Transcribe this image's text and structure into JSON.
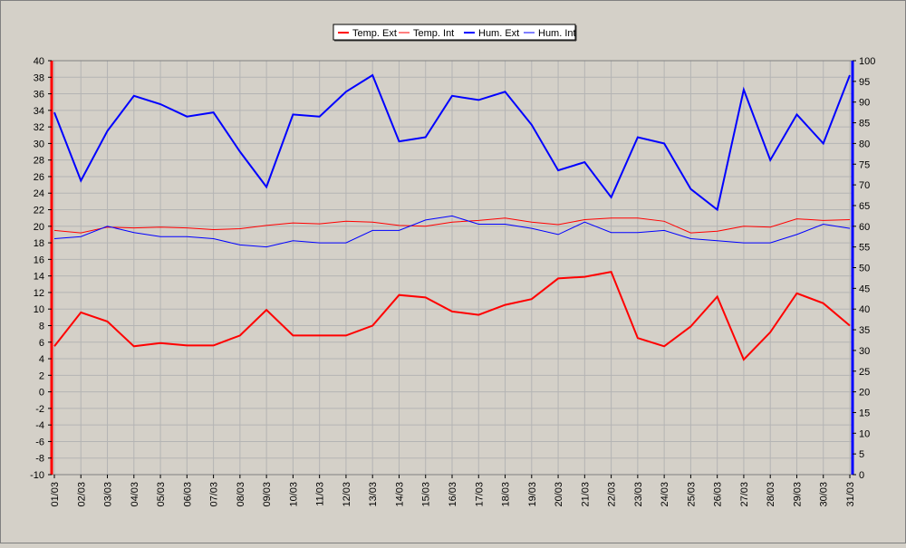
{
  "chart_data": {
    "type": "line",
    "title": "",
    "x": [
      "01/03",
      "02/03",
      "03/03",
      "04/03",
      "05/03",
      "06/03",
      "07/03",
      "08/03",
      "09/03",
      "10/03",
      "11/03",
      "12/03",
      "13/03",
      "14/03",
      "15/03",
      "16/03",
      "17/03",
      "18/03",
      "19/03",
      "20/03",
      "21/03",
      "22/03",
      "23/03",
      "24/03",
      "25/03",
      "26/03",
      "27/03",
      "28/03",
      "29/03",
      "30/03",
      "31/03"
    ],
    "left_axis": {
      "min": -10,
      "max": 40,
      "ticks": [
        -10,
        -8,
        -6,
        -4,
        -2,
        0,
        2,
        4,
        6,
        8,
        10,
        12,
        14,
        16,
        18,
        20,
        22,
        24,
        26,
        28,
        30,
        32,
        34,
        36,
        38,
        40
      ],
      "color": "#ff0000"
    },
    "right_axis": {
      "min": 0,
      "max": 100,
      "ticks": [
        0,
        5,
        10,
        15,
        20,
        25,
        30,
        35,
        40,
        45,
        50,
        55,
        60,
        65,
        70,
        75,
        80,
        85,
        90,
        95,
        100
      ],
      "color": "#0000ff"
    },
    "grid": true,
    "legend_position": "top-center",
    "series": [
      {
        "name": "Temp. Ext",
        "axis": "left",
        "color": "#ff0000",
        "width": 2,
        "values": [
          5.5,
          9.6,
          8.5,
          5.5,
          5.9,
          5.6,
          5.6,
          6.8,
          9.9,
          6.8,
          6.8,
          6.8,
          8.0,
          11.7,
          11.4,
          9.7,
          9.3,
          10.5,
          11.2,
          13.7,
          13.9,
          14.5,
          6.5,
          5.5,
          7.9,
          11.5,
          3.9,
          7.2,
          11.9,
          10.7,
          8.0
        ]
      },
      {
        "name": "Temp. Int",
        "axis": "left",
        "color": "#ff0000",
        "width": 1,
        "values": [
          19.5,
          19.2,
          19.9,
          19.8,
          19.9,
          19.8,
          19.6,
          19.7,
          20.1,
          20.4,
          20.3,
          20.6,
          20.5,
          20.1,
          20.0,
          20.5,
          20.7,
          21.0,
          20.5,
          20.2,
          20.8,
          21.0,
          21.0,
          20.6,
          19.2,
          19.4,
          20.0,
          19.9,
          20.9,
          20.7,
          20.8
        ]
      },
      {
        "name": "Hum. Ext",
        "axis": "right",
        "color": "#0000ff",
        "width": 2,
        "values": [
          87.5,
          71,
          83,
          91.5,
          89.5,
          86.5,
          87.5,
          78,
          69.5,
          87,
          86.5,
          92.5,
          96.5,
          80.5,
          81.5,
          91.5,
          90.5,
          92.5,
          84.5,
          73.5,
          75.5,
          67,
          81.5,
          80,
          69,
          64,
          93,
          76,
          87,
          80,
          96.5
        ]
      },
      {
        "name": "Hum. Int",
        "axis": "right",
        "color": "#0000ff",
        "width": 1,
        "values": [
          57,
          57.5,
          60,
          58.5,
          57.5,
          57.5,
          57,
          55.5,
          55,
          56.5,
          56,
          56,
          59,
          59,
          61.5,
          62.5,
          60.5,
          60.5,
          59.5,
          58,
          61,
          58.5,
          58.5,
          59,
          57,
          56.5,
          56,
          56,
          58,
          60.5,
          59.5
        ]
      }
    ]
  }
}
